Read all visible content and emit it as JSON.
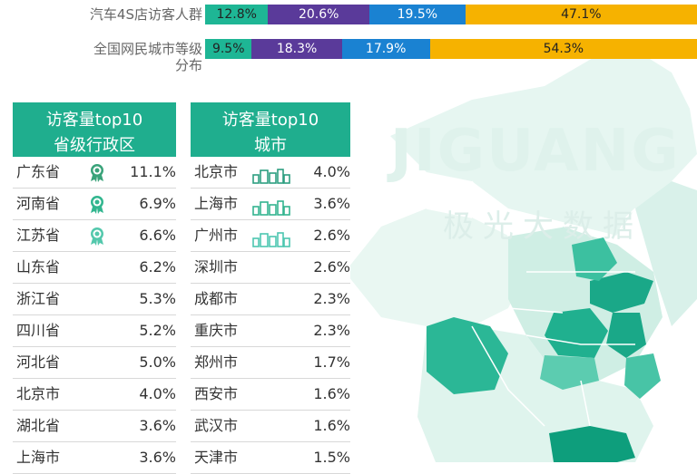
{
  "branding": {
    "watermark": "JIGUANG",
    "watermark_cn": "极光大数据"
  },
  "colors": {
    "tier1": "#1eb695",
    "tier2": "#5a3a9a",
    "tier3": "#1a82d2",
    "tier4": "#f6b200",
    "header": "#1fae8e"
  },
  "chart_data": [
    {
      "type": "bar",
      "orientation": "horizontal-stacked-100",
      "categories": [
        "汽车4S店访客人群",
        "全国网民城市等级分布"
      ],
      "series": [
        {
          "values": [
            12.8,
            9.5
          ]
        },
        {
          "values": [
            20.6,
            18.3
          ]
        },
        {
          "values": [
            19.5,
            17.9
          ]
        },
        {
          "values": [
            47.1,
            54.3
          ]
        }
      ],
      "value_labels": [
        [
          "12.8%",
          "20.6%",
          "19.5%",
          "47.1%"
        ],
        [
          "9.5%",
          "18.3%",
          "17.9%",
          "54.3%"
        ]
      ]
    },
    {
      "type": "table",
      "title": "访客量top10省级行政区",
      "header_lines": [
        "访客量top10",
        "省级行政区"
      ],
      "rows": [
        {
          "name": "广东省",
          "value": "11.1%",
          "medal": "gold-medal-icon"
        },
        {
          "name": "河南省",
          "value": "6.9%",
          "medal": "silver-medal-icon"
        },
        {
          "name": "江苏省",
          "value": "6.6%",
          "medal": "bronze-medal-icon"
        },
        {
          "name": "山东省",
          "value": "6.2%"
        },
        {
          "name": "浙江省",
          "value": "5.3%"
        },
        {
          "name": "四川省",
          "value": "5.2%"
        },
        {
          "name": "河北省",
          "value": "5.0%"
        },
        {
          "name": "北京市",
          "value": "4.0%"
        },
        {
          "name": "湖北省",
          "value": "3.6%"
        },
        {
          "name": "上海市",
          "value": "3.6%"
        }
      ]
    },
    {
      "type": "table",
      "title": "访客量top10城市",
      "header_lines": [
        "访客量top10",
        "城市"
      ],
      "rows": [
        {
          "name": "北京市",
          "value": "4.0%",
          "icon": "city-gold-icon"
        },
        {
          "name": "上海市",
          "value": "3.6%",
          "icon": "city-silver-icon"
        },
        {
          "name": "广州市",
          "value": "2.6%",
          "icon": "city-bronze-icon"
        },
        {
          "name": "深圳市",
          "value": "2.6%"
        },
        {
          "name": "成都市",
          "value": "2.3%"
        },
        {
          "name": "重庆市",
          "value": "2.3%"
        },
        {
          "name": "郑州市",
          "value": "1.7%"
        },
        {
          "name": "西安市",
          "value": "1.6%"
        },
        {
          "name": "武汉市",
          "value": "1.6%"
        },
        {
          "name": "天津市",
          "value": "1.5%"
        }
      ]
    }
  ]
}
